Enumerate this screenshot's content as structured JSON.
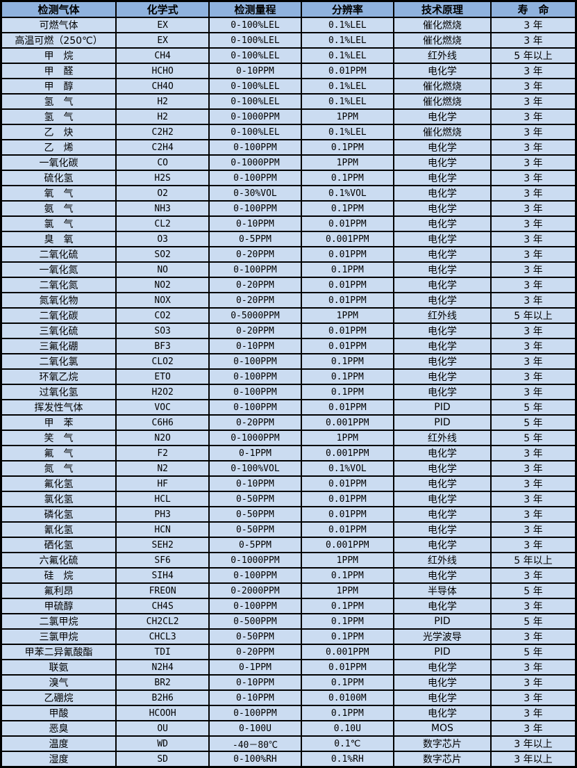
{
  "colors": {
    "header_bg": "#8FB2DE",
    "row_bg": "#CBDCF1",
    "border": "#000000",
    "text": "#000000"
  },
  "table": {
    "columns": [
      "检测气体",
      "化学式",
      "检测量程",
      "分辨率",
      "技术原理",
      "寿　命"
    ],
    "rows": [
      [
        "可燃气体",
        "EX",
        "0-100%LEL",
        "0.1%LEL",
        "催化燃烧",
        "3 年"
      ],
      [
        "高温可燃（250℃）",
        "EX",
        "0-100%LEL",
        "0.1%LEL",
        "催化燃烧",
        "3 年"
      ],
      [
        "甲　烷",
        "CH4",
        "0-100%LEL",
        "0.1%LEL",
        "红外线",
        "5 年以上"
      ],
      [
        "甲　醛",
        "HCHO",
        "0-10PPM",
        "0.01PPM",
        "电化学",
        "3 年"
      ],
      [
        "甲　醇",
        "CH4O",
        "0-100%LEL",
        "0.1%LEL",
        "催化燃烧",
        "3 年"
      ],
      [
        "氢　气",
        "H2",
        "0-100%LEL",
        "0.1%LEL",
        "催化燃烧",
        "3 年"
      ],
      [
        "氢　气",
        "H2",
        "0-1000PPM",
        "1PPM",
        "电化学",
        "3 年"
      ],
      [
        "乙　炔",
        "C2H2",
        "0-100%LEL",
        "0.1%LEL",
        "催化燃烧",
        "3 年"
      ],
      [
        "乙　烯",
        "C2H4",
        "0-100PPM",
        "0.1PPM",
        "电化学",
        "3 年"
      ],
      [
        "一氧化碳",
        "CO",
        "0-1000PPM",
        "1PPM",
        "电化学",
        "3 年"
      ],
      [
        "硫化氢",
        "H2S",
        "0-100PPM",
        "0.1PPM",
        "电化学",
        "3 年"
      ],
      [
        "氧　气",
        "O2",
        "0-30%VOL",
        "0.1%VOL",
        "电化学",
        "3 年"
      ],
      [
        "氨　气",
        "NH3",
        "0-100PPM",
        "0.1PPM",
        "电化学",
        "3 年"
      ],
      [
        "氯　气",
        "CL2",
        "0-10PPM",
        "0.01PPM",
        "电化学",
        "3 年"
      ],
      [
        "臭　氧",
        "O3",
        "0-5PPM",
        "0.001PPM",
        "电化学",
        "3 年"
      ],
      [
        "二氧化硫",
        "SO2",
        "0-20PPM",
        "0.01PPM",
        "电化学",
        "3 年"
      ],
      [
        "一氧化氮",
        "NO",
        "0-100PPM",
        "0.1PPM",
        "电化学",
        "3 年"
      ],
      [
        "二氧化氮",
        "NO2",
        "0-20PPM",
        "0.01PPM",
        "电化学",
        "3 年"
      ],
      [
        "氮氧化物",
        "NOX",
        "0-20PPM",
        "0.01PPM",
        "电化学",
        "3 年"
      ],
      [
        "二氧化碳",
        "CO2",
        "0-5000PPM",
        "1PPM",
        "红外线",
        "5 年以上"
      ],
      [
        "三氧化硫",
        "SO3",
        "0-20PPM",
        "0.01PPM",
        "电化学",
        "3 年"
      ],
      [
        "三氟化硼",
        "BF3",
        "0-10PPM",
        "0.01PPM",
        "电化学",
        "3 年"
      ],
      [
        "二氧化氯",
        "CLO2",
        "0-100PPM",
        "0.1PPM",
        "电化学",
        "3 年"
      ],
      [
        "环氧乙烷",
        "ETO",
        "0-100PPM",
        "0.1PPM",
        "电化学",
        "3 年"
      ],
      [
        "过氧化氢",
        "H2O2",
        "0-100PPM",
        "0.1PPM",
        "电化学",
        "3 年"
      ],
      [
        "挥发性气体",
        "VOC",
        "0-100PPM",
        "0.01PPM",
        "PID",
        "5 年"
      ],
      [
        "甲　苯",
        "C6H6",
        "0-20PPM",
        "0.001PPM",
        "PID",
        "5 年"
      ],
      [
        "笑　气",
        "N2O",
        "0-1000PPM",
        "1PPM",
        "红外线",
        "5 年"
      ],
      [
        "氟　气",
        "F2",
        "0-1PPM",
        "0.001PPM",
        "电化学",
        "3 年"
      ],
      [
        "氮　气",
        "N2",
        "0-100%VOL",
        "0.1%VOL",
        "电化学",
        "3 年"
      ],
      [
        "氟化氢",
        "HF",
        "0-10PPM",
        "0.01PPM",
        "电化学",
        "3 年"
      ],
      [
        "氯化氢",
        "HCL",
        "0-50PPM",
        "0.01PPM",
        "电化学",
        "3 年"
      ],
      [
        "磷化氢",
        "PH3",
        "0-50PPM",
        "0.01PPM",
        "电化学",
        "3 年"
      ],
      [
        "氰化氢",
        "HCN",
        "0-50PPM",
        "0.01PPM",
        "电化学",
        "3 年"
      ],
      [
        "硒化氢",
        "SEH2",
        "0-5PPM",
        "0.001PPM",
        "电化学",
        "3 年"
      ],
      [
        "六氟化硫",
        "SF6",
        "0-1000PPM",
        "1PPM",
        "红外线",
        "5 年以上"
      ],
      [
        "硅　烷",
        "SIH4",
        "0-100PPM",
        "0.1PPM",
        "电化学",
        "3 年"
      ],
      [
        "氟利昂",
        "FREON",
        "0-2000PPM",
        "1PPM",
        "半导体",
        "5 年"
      ],
      [
        "甲硫醇",
        "CH4S",
        "0-100PPM",
        "0.1PPM",
        "电化学",
        "3 年"
      ],
      [
        "二氯甲烷",
        "CH2CL2",
        "0-500PPM",
        "0.1PPM",
        "PID",
        "5 年"
      ],
      [
        "三氯甲烷",
        "CHCL3",
        "0-50PPM",
        "0.1PPM",
        "光学波导",
        "3 年"
      ],
      [
        "甲苯二异氰酸酯",
        "TDI",
        "0-20PPM",
        "0.001PPM",
        "PID",
        "5 年"
      ],
      [
        "联氨",
        "N2H4",
        "0-1PPM",
        "0.01PPM",
        "电化学",
        "3 年"
      ],
      [
        "溴气",
        "BR2",
        "0-10PPM",
        "0.1PPM",
        "电化学",
        "3 年"
      ],
      [
        "乙硼烷",
        "B2H6",
        "0-10PPM",
        "0.0100M",
        "电化学",
        "3 年"
      ],
      [
        "甲酸",
        "HCOOH",
        "0-100PPM",
        "0.1PPM",
        "电化学",
        "3 年"
      ],
      [
        "恶臭",
        "OU",
        "0-100U",
        "0.10U",
        "MOS",
        "3 年"
      ],
      [
        "温度",
        "WD",
        "-40－80℃",
        "0.1℃",
        "数字芯片",
        "3 年以上"
      ],
      [
        "湿度",
        "SD",
        "0-100%RH",
        "0.1%RH",
        "数字芯片",
        "3 年以上"
      ]
    ]
  }
}
